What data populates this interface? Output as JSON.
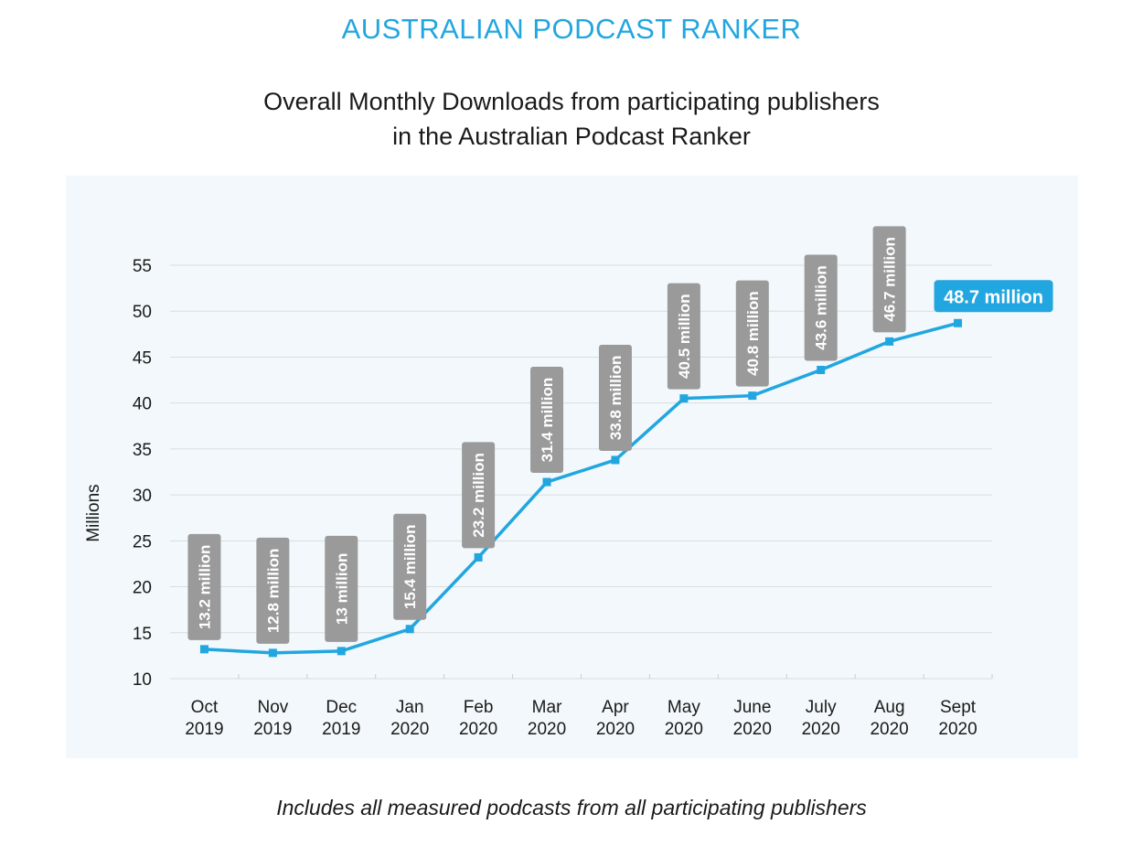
{
  "header": {
    "brand": "AUSTRALIAN PODCAST RANKER",
    "title_line1": "Overall Monthly Downloads from participating publishers",
    "title_line2": "in the Australian Podcast Ranker"
  },
  "footnote": "Includes all measured podcasts from all participating publishers",
  "colors": {
    "line": "#22a6e0",
    "label_box": "#9a9a9a",
    "highlight_box": "#22a6e0",
    "grid": "#d9dde0",
    "panel": "#f2f8fb"
  },
  "chart_data": {
    "type": "line",
    "ylabel": "Millions",
    "xlabel": "",
    "ylim": [
      10,
      55
    ],
    "yticks": [
      10,
      15,
      20,
      25,
      30,
      35,
      40,
      45,
      50,
      55
    ],
    "grid": true,
    "categories": [
      [
        "Oct",
        "2019"
      ],
      [
        "Nov",
        "2019"
      ],
      [
        "Dec",
        "2019"
      ],
      [
        "Jan",
        "2020"
      ],
      [
        "Feb",
        "2020"
      ],
      [
        "Mar",
        "2020"
      ],
      [
        "Apr",
        "2020"
      ],
      [
        "May",
        "2020"
      ],
      [
        "June",
        "2020"
      ],
      [
        "July",
        "2020"
      ],
      [
        "Aug",
        "2020"
      ],
      [
        "Sept",
        "2020"
      ]
    ],
    "values": [
      13.2,
      12.8,
      13,
      15.4,
      23.2,
      31.4,
      33.8,
      40.5,
      40.8,
      43.6,
      46.7,
      48.7
    ],
    "data_labels": [
      "13.2 million",
      "12.8 million",
      "13 million",
      "15.4 million",
      "23.2 million",
      "31.4 million",
      "33.8 million",
      "40.5 million",
      "40.8 million",
      "43.6 million",
      "46.7 million",
      "48.7 million"
    ],
    "highlight_index": 11
  }
}
